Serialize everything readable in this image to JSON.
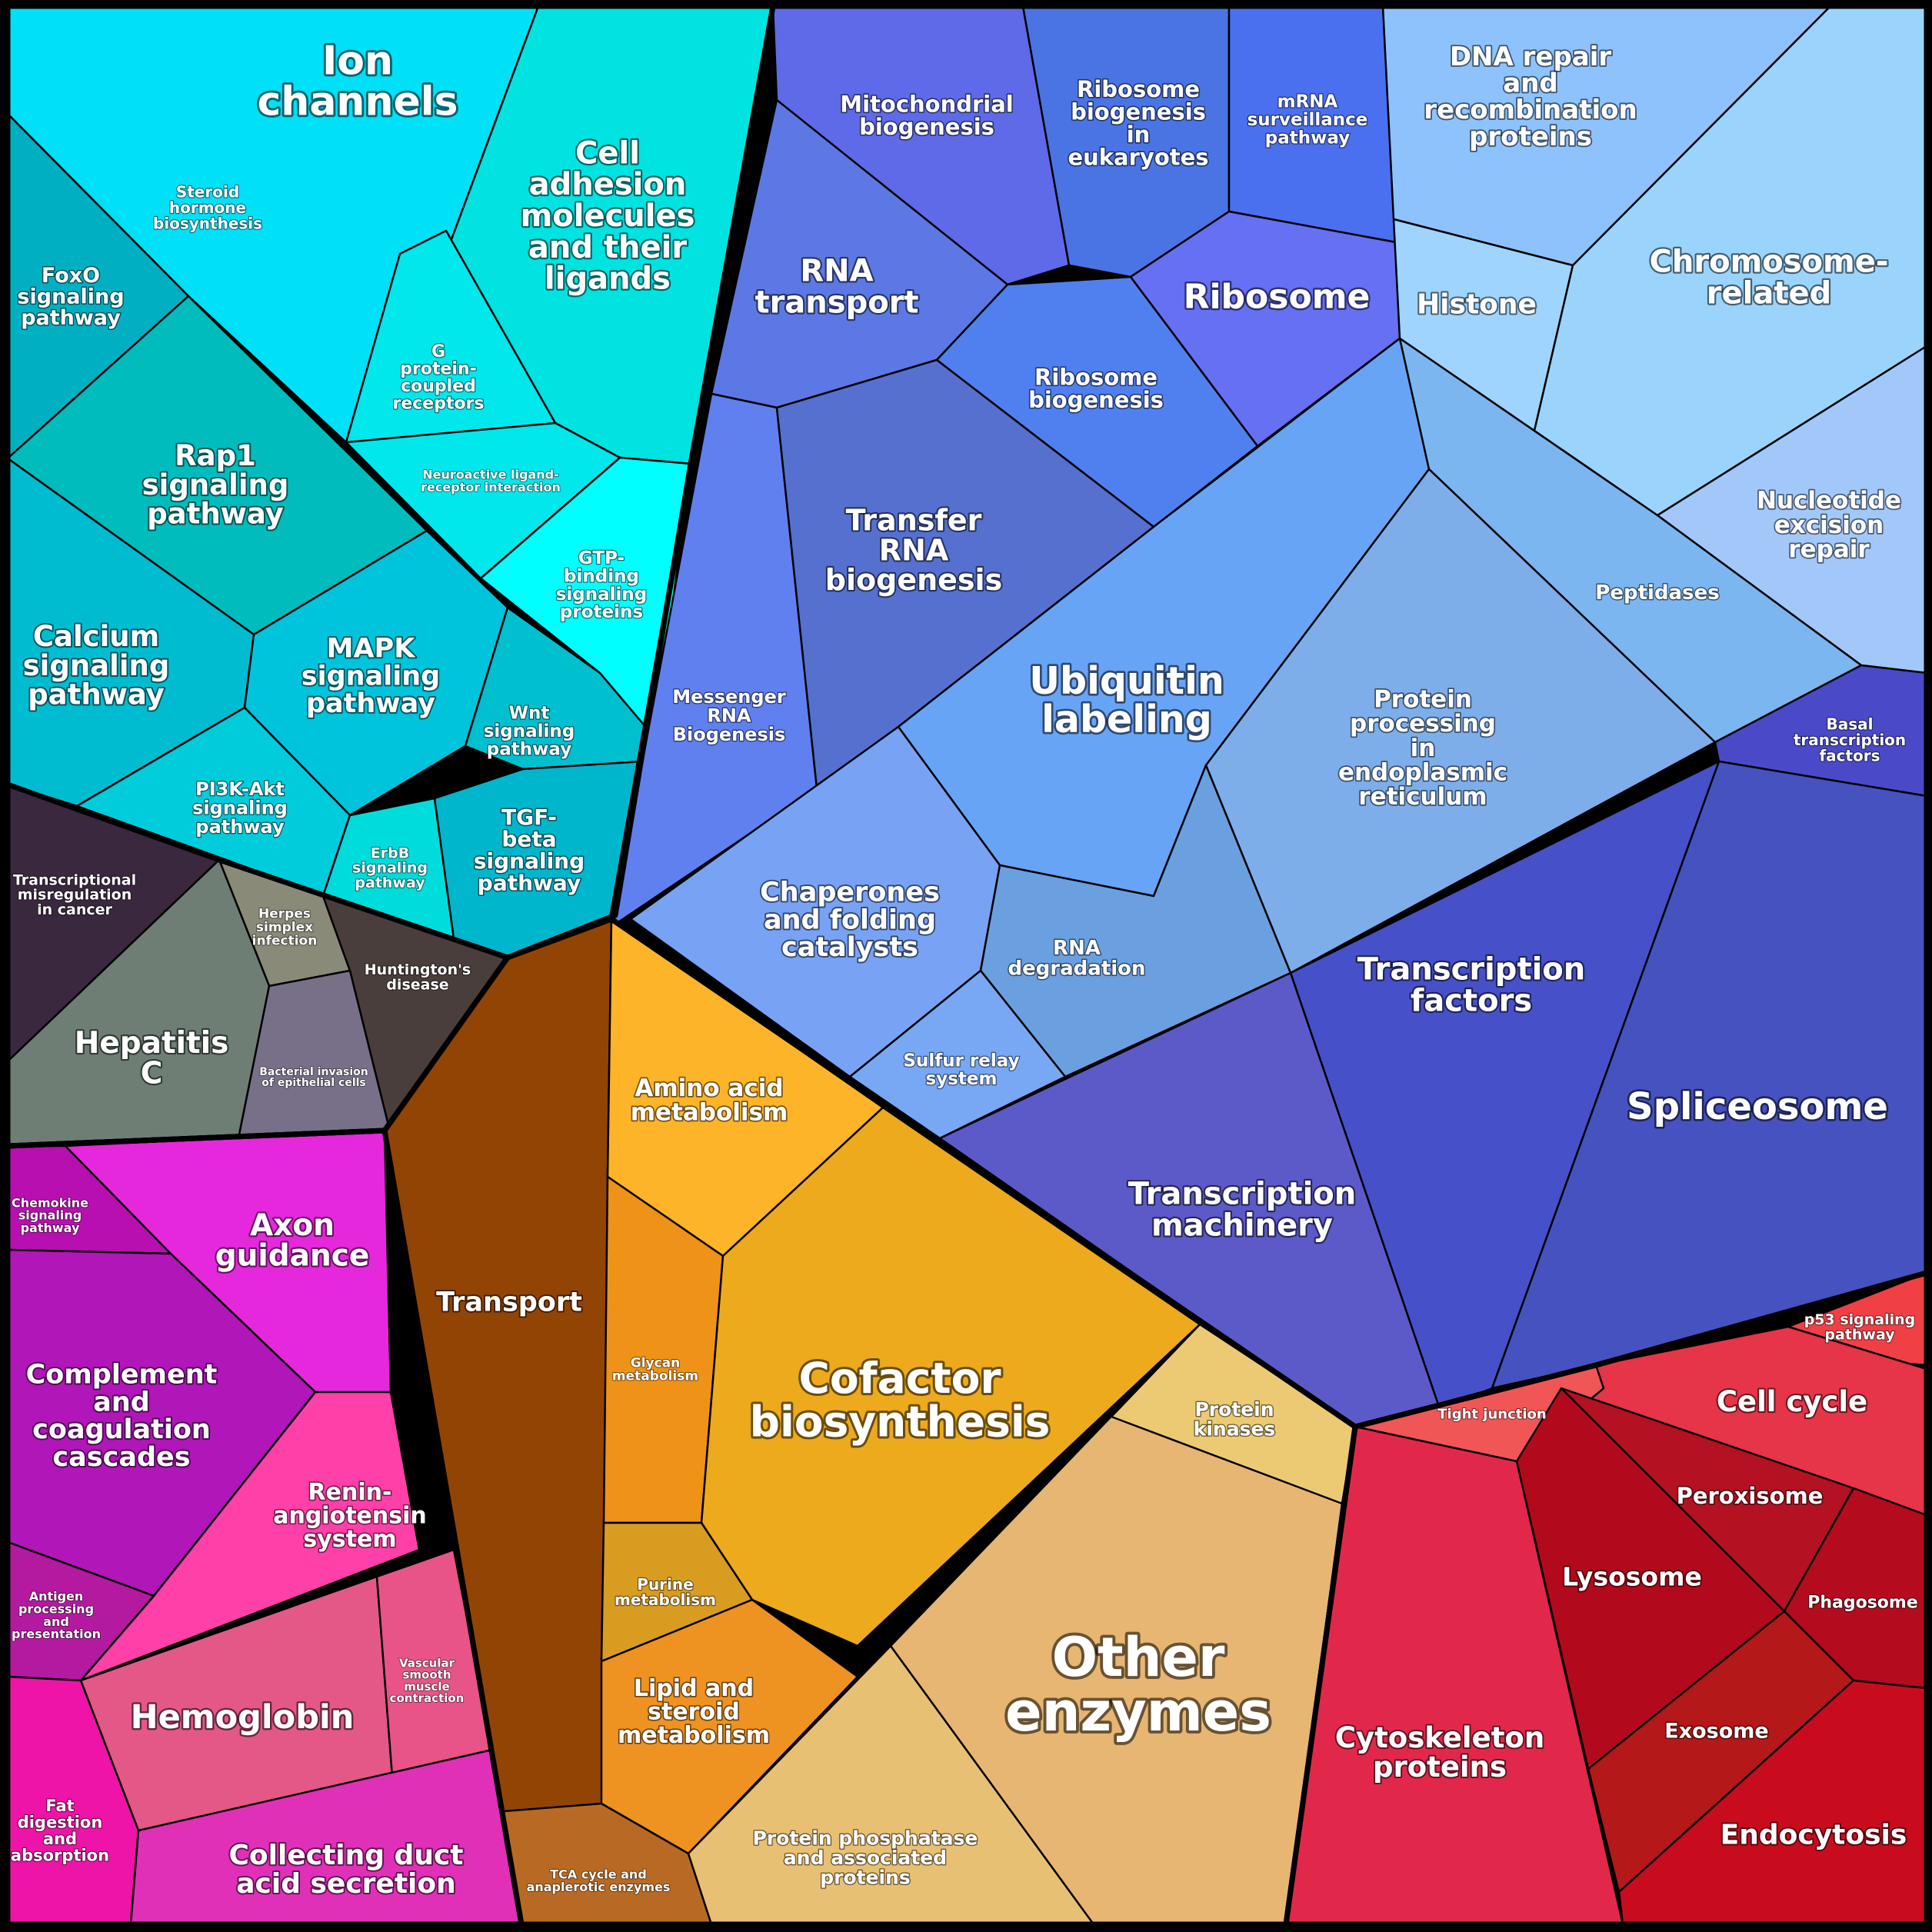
{
  "cells": [
    {
      "label": "Ion channels",
      "color": "#00c8d8"
    },
    {
      "label": "Steroid hormone biosynthesis",
      "color": "#00e0f6"
    },
    {
      "label": "Cell adhesion molecules and their ligands",
      "color": "#00e3e0"
    },
    {
      "label": "FoxO signaling pathway",
      "color": "#00b0c2"
    },
    {
      "label": "G protein-coupled receptors",
      "color": "#00e8ec"
    },
    {
      "label": "Neuroactive ligand-receptor interaction",
      "color": "#00e8ec"
    },
    {
      "label": "Rap1 signaling pathway",
      "color": "#00bcbc"
    },
    {
      "label": "GTP-binding signaling proteins",
      "color": "#00ffff"
    },
    {
      "label": "Calcium signaling pathway",
      "color": "#00bcd0"
    },
    {
      "label": "MAPK signaling pathway",
      "color": "#00c3dc"
    },
    {
      "label": "Wnt signaling pathway",
      "color": "#00bfcf"
    },
    {
      "label": "PI3K-Akt signaling pathway",
      "color": "#00ccdc"
    },
    {
      "label": "ErbB signaling pathway",
      "color": "#00dcdc"
    },
    {
      "label": "TGF-beta signaling pathway",
      "color": "#00b6cc"
    },
    {
      "label": "Mitochondrial biogenesis",
      "color": "#5e6ae8"
    },
    {
      "label": "Ribosome biogenesis in eukaryotes",
      "color": "#4a74e3"
    },
    {
      "label": "mRNA surveillance pathway",
      "color": "#4a70f0"
    },
    {
      "label": "DNA repair and recombination proteins",
      "color": "#8ec2fc"
    },
    {
      "label": "RNA transport",
      "color": "#5c78e4"
    },
    {
      "label": "Ribosome",
      "color": "#6670f2"
    },
    {
      "label": "Ribosome biogenesis",
      "color": "#5080f0"
    },
    {
      "label": "Histone",
      "color": "#9ed4fd"
    },
    {
      "label": "Chromosome-related",
      "color": "#9ad4fd"
    },
    {
      "label": "Nucleotide excision repair",
      "color": "#a2c8fa"
    },
    {
      "label": "Messenger RNA Biogenesis",
      "color": "#6080f0"
    },
    {
      "label": "Transfer RNA biogenesis",
      "color": "#5670d0"
    },
    {
      "label": "Ubiquitin labeling",
      "color": "#68a4f6"
    },
    {
      "label": "Peptidases",
      "color": "#7cb6f0"
    },
    {
      "label": "Protein processing in endoplasmic reticulum",
      "color": "#7eaeea"
    },
    {
      "label": "Basal transcription factors",
      "color": "#4a4ac8"
    },
    {
      "label": "Chaperones and folding catalysts",
      "color": "#78a2f4"
    },
    {
      "label": "RNA degradation",
      "color": "#6aa0e0"
    },
    {
      "label": "Sulfur relay system",
      "color": "#78a8f4"
    },
    {
      "label": "Transcription factors",
      "color": "#4650c8"
    },
    {
      "label": "Spliceosome",
      "color": "#4652c0"
    },
    {
      "label": "Transcription machinery",
      "color": "#5c5ac8"
    },
    {
      "label": "Transcriptional misregulation in cancer",
      "color": "#3a283e"
    },
    {
      "label": "Herpes simplex infection",
      "color": "#8a8a78"
    },
    {
      "label": "Huntington's disease",
      "color": "#4a3e3c"
    },
    {
      "label": "Hepatitis C",
      "color": "#6e7e74"
    },
    {
      "label": "Bacterial invasion of epithelial cells",
      "color": "#787088"
    },
    {
      "label": "Transport",
      "color": "#924404"
    },
    {
      "label": "Amino acid metabolism",
      "color": "#fdb428"
    },
    {
      "label": "Glycan metabolism",
      "color": "#ef9218"
    },
    {
      "label": "Cofactor biosynthesis",
      "color": "#ecaa1c"
    },
    {
      "label": "Purine metabolism",
      "color": "#d89c20"
    },
    {
      "label": "Lipid and steroid metabolism",
      "color": "#ee9222"
    },
    {
      "label": "TCA cycle and anaplerotic enzymes",
      "color": "#b86a24"
    },
    {
      "label": "Protein phosphatase and associated proteins",
      "color": "#e8c074"
    },
    {
      "label": "Other enzymes",
      "color": "#e6b672"
    },
    {
      "label": "Protein kinases",
      "color": "#ecca74"
    },
    {
      "label": "Chemokine signaling pathway",
      "color": "#b810b0"
    },
    {
      "label": "Axon guidance",
      "color": "#e628dc"
    },
    {
      "label": "Complement and coagulation cascades",
      "color": "#b016b8"
    },
    {
      "label": "Renin-angiotensin system",
      "color": "#fe40a8"
    },
    {
      "label": "Antigen processing and presentation",
      "color": "#b41aa0"
    },
    {
      "label": "Hemoglobin",
      "color": "#e45888"
    },
    {
      "label": "Vascular smooth muscle contraction",
      "color": "#e85488"
    },
    {
      "label": "Fat digestion and absorption",
      "color": "#ee14a8"
    },
    {
      "label": "Collecting duct acid secretion",
      "color": "#e030b8"
    },
    {
      "label": "p53 signaling pathway",
      "color": "#f04046"
    },
    {
      "label": "Cell cycle",
      "color": "#e63448"
    },
    {
      "label": "Tight junction",
      "color": "#f05656"
    },
    {
      "label": "Peroxisome",
      "color": "#b41222"
    },
    {
      "label": "Lysosome",
      "color": "#b20a1c"
    },
    {
      "label": "Phagosome",
      "color": "#b40c1e"
    },
    {
      "label": "Exosome",
      "color": "#b41818"
    },
    {
      "label": "Endocytosis",
      "color": "#c80c1e"
    },
    {
      "label": "Cytoskeleton proteins",
      "color": "#e2284a"
    }
  ]
}
